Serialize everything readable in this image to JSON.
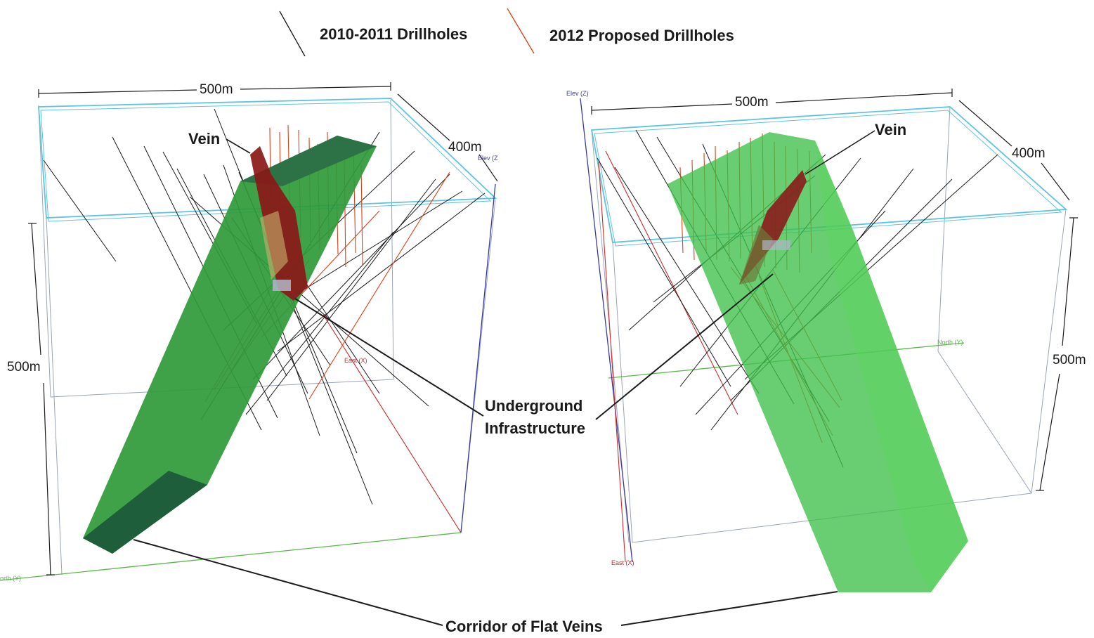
{
  "legend": {
    "existing": "2010-2011 Drillholes",
    "proposed": "2012 Proposed Drillholes"
  },
  "colors": {
    "existing_hole": "#1c1c1c",
    "proposed_hole": "#d8421a",
    "corridor_fill": "#2f9a3a",
    "corridor_light": "#3fc04a",
    "vein": "#8a1818",
    "box_top": "#5fc3e0",
    "box_edge": "#9aa5b5",
    "elev_axis": "#3a3a9a",
    "east_axis": "#cc2a2a",
    "north_axis": "#5ab84a"
  },
  "left_view": {
    "dim_top": "500m",
    "dim_depth": "400m",
    "dim_height": "500m",
    "vein_label": "Vein",
    "axis_elev": "Elev (Z",
    "axis_east": "East (X)",
    "axis_north": "orth (Y)"
  },
  "right_view": {
    "dim_top": "500m",
    "dim_depth": "400m",
    "dim_height": "500m",
    "vein_label": "Vein",
    "axis_elev": "Elev (Z)",
    "axis_east": "East (X)",
    "axis_north": "North (Y)"
  },
  "callouts": {
    "infrastructure_line1": "Underground",
    "infrastructure_line2": "Infrastructure",
    "corridor": "Corridor of Flat Veins"
  }
}
